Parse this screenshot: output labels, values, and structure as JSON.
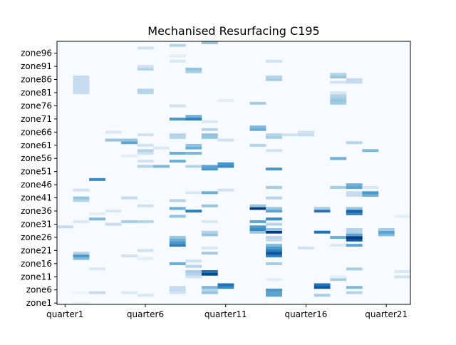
{
  "chart_data": {
    "type": "heatmap",
    "title": "Mechanised Resurfacing C195",
    "xlabel": "",
    "ylabel": "",
    "colormap": "Blues",
    "colormap_stops": [
      "#f7fbff",
      "#deebf7",
      "#c6dbef",
      "#9ecae1",
      "#6baed6",
      "#4292c6",
      "#2171b5",
      "#08519c",
      "#08306b"
    ],
    "value_range": [
      0,
      1
    ],
    "x_categories": [
      "quarter1",
      "quarter2",
      "quarter3",
      "quarter4",
      "quarter5",
      "quarter6",
      "quarter7",
      "quarter8",
      "quarter9",
      "quarter10",
      "quarter11",
      "quarter12",
      "quarter13",
      "quarter14",
      "quarter15",
      "quarter16",
      "quarter17",
      "quarter18",
      "quarter19",
      "quarter20",
      "quarter21",
      "quarter22"
    ],
    "x_tick_labels": [
      "quarter1",
      "quarter6",
      "quarter11",
      "quarter16",
      "quarter21"
    ],
    "y_categories_count": 100,
    "y_category_prefix": "zone",
    "y_tick_labels": [
      "zone1",
      "zone6",
      "zone11",
      "zone16",
      "zone21",
      "zone26",
      "zone31",
      "zone36",
      "zone41",
      "zone46",
      "zone51",
      "zone56",
      "zone61",
      "zone66",
      "zone71",
      "zone76",
      "zone81",
      "zone86",
      "zone91",
      "zone96"
    ],
    "grid": false,
    "legend": "none",
    "cells": [
      [
        1,
        29,
        0.25
      ],
      [
        2,
        0,
        0.05
      ],
      [
        2,
        17,
        0.45
      ],
      [
        2,
        18,
        0.6
      ],
      [
        2,
        19,
        0.3
      ],
      [
        2,
        4,
        0.05
      ],
      [
        2,
        39,
        0.3
      ],
      [
        2,
        40,
        0.4
      ],
      [
        2,
        43,
        0.2
      ],
      [
        2,
        31,
        0.15
      ],
      [
        2,
        80,
        0.25
      ],
      [
        2,
        81,
        0.25
      ],
      [
        2,
        82,
        0.25
      ],
      [
        2,
        83,
        0.25
      ],
      [
        2,
        84,
        0.25
      ],
      [
        2,
        85,
        0.25
      ],
      [
        2,
        86,
        0.25
      ],
      [
        3,
        13,
        0.15
      ],
      [
        3,
        34,
        0.1
      ],
      [
        3,
        32,
        0.45
      ],
      [
        3,
        4,
        0.25
      ],
      [
        3,
        47,
        0.65
      ],
      [
        4,
        30,
        0.25
      ],
      [
        4,
        35,
        0.15
      ],
      [
        4,
        62,
        0.4
      ],
      [
        4,
        65,
        0.15
      ],
      [
        5,
        4,
        0.15
      ],
      [
        5,
        18,
        0.2
      ],
      [
        5,
        31,
        0.35
      ],
      [
        5,
        40,
        0.25
      ],
      [
        5,
        56,
        0.1
      ],
      [
        5,
        61,
        0.55
      ],
      [
        5,
        62,
        0.4
      ],
      [
        6,
        3,
        0.15
      ],
      [
        6,
        17,
        0.1
      ],
      [
        6,
        20,
        0.2
      ],
      [
        6,
        31,
        0.3
      ],
      [
        6,
        37,
        0.2
      ],
      [
        6,
        52,
        0.3
      ],
      [
        6,
        54,
        0.2
      ],
      [
        6,
        57,
        0.2
      ],
      [
        6,
        58,
        0.3
      ],
      [
        6,
        60,
        0.2
      ],
      [
        6,
        64,
        0.2
      ],
      [
        6,
        80,
        0.3
      ],
      [
        6,
        81,
        0.3
      ],
      [
        6,
        89,
        0.3
      ],
      [
        6,
        90,
        0.2
      ],
      [
        6,
        97,
        0.2
      ],
      [
        7,
        59,
        0.15
      ],
      [
        7,
        52,
        0.45
      ],
      [
        8,
        4,
        0.2
      ],
      [
        8,
        5,
        0.25
      ],
      [
        8,
        6,
        0.25
      ],
      [
        8,
        15,
        0.5
      ],
      [
        8,
        22,
        0.7
      ],
      [
        8,
        23,
        0.6
      ],
      [
        8,
        24,
        0.5
      ],
      [
        8,
        25,
        0.4
      ],
      [
        8,
        33,
        0.4
      ],
      [
        8,
        36,
        0.5
      ],
      [
        8,
        39,
        0.3
      ],
      [
        8,
        54,
        0.5
      ],
      [
        8,
        57,
        0.5
      ],
      [
        8,
        63,
        0.3
      ],
      [
        8,
        64,
        0.3
      ],
      [
        8,
        70,
        0.6
      ],
      [
        8,
        75,
        0.2
      ],
      [
        8,
        92,
        0.15
      ],
      [
        8,
        94,
        0.1
      ],
      [
        8,
        98,
        0.3
      ],
      [
        9,
        10,
        0.2
      ],
      [
        9,
        11,
        0.3
      ],
      [
        9,
        12,
        0.35
      ],
      [
        9,
        14,
        0.3
      ],
      [
        9,
        16,
        0.2
      ],
      [
        9,
        35,
        0.7
      ],
      [
        9,
        42,
        0.15
      ],
      [
        9,
        52,
        0.3
      ],
      [
        9,
        57,
        0.45
      ],
      [
        9,
        59,
        0.5
      ],
      [
        9,
        60,
        0.4
      ],
      [
        9,
        70,
        0.7
      ],
      [
        9,
        71,
        0.5
      ],
      [
        9,
        88,
        0.35
      ],
      [
        9,
        89,
        0.4
      ],
      [
        10,
        4,
        0.4
      ],
      [
        10,
        5,
        0.3
      ],
      [
        10,
        6,
        0.45
      ],
      [
        10,
        11,
        0.9
      ],
      [
        10,
        12,
        0.75
      ],
      [
        10,
        19,
        0.35
      ],
      [
        10,
        21,
        0.15
      ],
      [
        10,
        26,
        0.4
      ],
      [
        10,
        27,
        0.3
      ],
      [
        10,
        31,
        0.15
      ],
      [
        10,
        37,
        0.4
      ],
      [
        10,
        42,
        0.5
      ],
      [
        10,
        51,
        0.6
      ],
      [
        10,
        52,
        0.55
      ],
      [
        10,
        63,
        0.4
      ],
      [
        10,
        64,
        0.4
      ],
      [
        10,
        66,
        0.3
      ],
      [
        10,
        69,
        0.15
      ],
      [
        10,
        99,
        0.4
      ],
      [
        11,
        6,
        0.65
      ],
      [
        11,
        7,
        0.75
      ],
      [
        11,
        43,
        0.2
      ],
      [
        11,
        52,
        0.65
      ],
      [
        11,
        53,
        0.6
      ],
      [
        11,
        62,
        0.2
      ],
      [
        11,
        77,
        0.1
      ],
      [
        13,
        27,
        0.4
      ],
      [
        13,
        28,
        0.65
      ],
      [
        13,
        29,
        0.6
      ],
      [
        13,
        31,
        0.55
      ],
      [
        13,
        36,
        0.95
      ],
      [
        13,
        37,
        0.4
      ],
      [
        13,
        66,
        0.5
      ],
      [
        13,
        67,
        0.45
      ],
      [
        13,
        76,
        0.35
      ],
      [
        13,
        60,
        0.3
      ],
      [
        14,
        3,
        0.55
      ],
      [
        14,
        4,
        0.55
      ],
      [
        14,
        5,
        0.6
      ],
      [
        14,
        9,
        0.1
      ],
      [
        14,
        15,
        0.35
      ],
      [
        14,
        18,
        0.7
      ],
      [
        14,
        19,
        0.85
      ],
      [
        14,
        20,
        0.7
      ],
      [
        14,
        21,
        0.6
      ],
      [
        14,
        22,
        0.45
      ],
      [
        14,
        24,
        0.25
      ],
      [
        14,
        25,
        0.3
      ],
      [
        14,
        27,
        0.95
      ],
      [
        14,
        28,
        0.4
      ],
      [
        14,
        30,
        0.3
      ],
      [
        14,
        32,
        0.65
      ],
      [
        14,
        35,
        0.55
      ],
      [
        14,
        36,
        0.4
      ],
      [
        14,
        40,
        0.3
      ],
      [
        14,
        44,
        0.35
      ],
      [
        14,
        51,
        0.6
      ],
      [
        14,
        58,
        0.2
      ],
      [
        14,
        63,
        0.35
      ],
      [
        14,
        64,
        0.3
      ],
      [
        14,
        85,
        0.35
      ],
      [
        14,
        86,
        0.3
      ],
      [
        14,
        92,
        0.2
      ],
      [
        15,
        64,
        0.2
      ],
      [
        16,
        21,
        0.2
      ],
      [
        16,
        64,
        0.25
      ],
      [
        16,
        65,
        0.2
      ],
      [
        17,
        3,
        0.35
      ],
      [
        17,
        6,
        0.85
      ],
      [
        17,
        7,
        0.75
      ],
      [
        17,
        27,
        0.75
      ],
      [
        17,
        35,
        0.75
      ],
      [
        17,
        36,
        0.35
      ],
      [
        18,
        9,
        0.35
      ],
      [
        18,
        10,
        0.1
      ],
      [
        18,
        22,
        0.15
      ],
      [
        18,
        25,
        0.5
      ],
      [
        18,
        44,
        0.35
      ],
      [
        18,
        55,
        0.5
      ],
      [
        18,
        84,
        0.2
      ],
      [
        18,
        76,
        0.35
      ],
      [
        18,
        77,
        0.4
      ],
      [
        18,
        78,
        0.35
      ],
      [
        18,
        79,
        0.3
      ],
      [
        18,
        80,
        0.15
      ],
      [
        18,
        86,
        0.4
      ],
      [
        18,
        87,
        0.3
      ],
      [
        19,
        4,
        0.3
      ],
      [
        19,
        6,
        0.45
      ],
      [
        19,
        13,
        0.35
      ],
      [
        19,
        22,
        0.55
      ],
      [
        19,
        24,
        0.85
      ],
      [
        19,
        25,
        0.95
      ],
      [
        19,
        26,
        0.55
      ],
      [
        19,
        27,
        0.3
      ],
      [
        19,
        28,
        0.3
      ],
      [
        19,
        34,
        0.7
      ],
      [
        19,
        35,
        0.8
      ],
      [
        19,
        36,
        0.4
      ],
      [
        19,
        41,
        0.25
      ],
      [
        19,
        42,
        0.25
      ],
      [
        19,
        44,
        0.55
      ],
      [
        19,
        45,
        0.5
      ],
      [
        19,
        61,
        0.3
      ],
      [
        19,
        84,
        0.25
      ],
      [
        19,
        85,
        0.25
      ],
      [
        20,
        44,
        0.15
      ],
      [
        20,
        41,
        0.5
      ],
      [
        20,
        42,
        0.6
      ],
      [
        20,
        58,
        0.45
      ],
      [
        21,
        26,
        0.45
      ],
      [
        21,
        27,
        0.55
      ],
      [
        21,
        28,
        0.35
      ],
      [
        22,
        10,
        0.2
      ],
      [
        22,
        12,
        0.15
      ],
      [
        22,
        33,
        0.1
      ]
    ]
  }
}
